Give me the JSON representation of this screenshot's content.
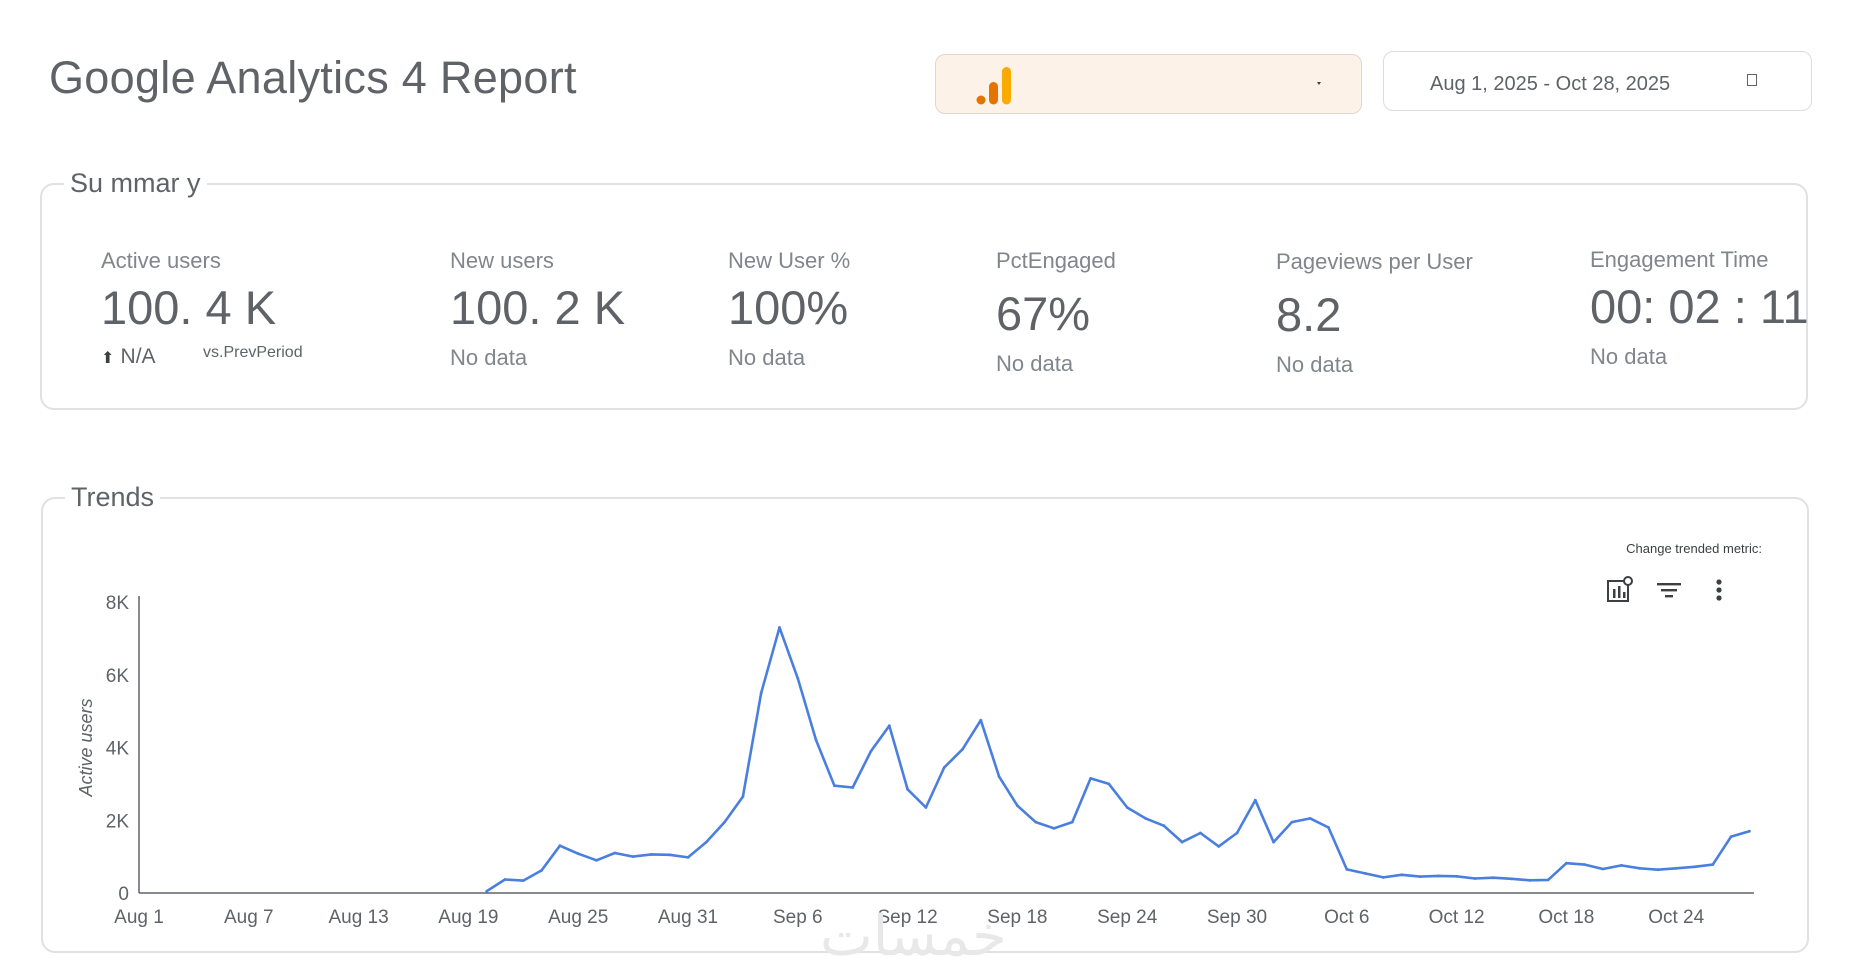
{
  "header": {
    "title": "Google Analytics 4 Report",
    "account_selector": {
      "logo_icon": "ga-bars-logo-icon",
      "value": ""
    },
    "date_range": {
      "text": "Aug 1, 2025 - Oct 28, 2025",
      "icon": "calendar-icon"
    }
  },
  "summary": {
    "legend": "Su mmar y",
    "metrics": [
      {
        "label": "Active users",
        "value": "100. 4 K",
        "change": "N/A",
        "change_icon": "arrow-up-icon",
        "vs": "vs.PrevPeriod"
      },
      {
        "label": "New users",
        "value": "100. 2 K",
        "sub": "No data"
      },
      {
        "label": "New User %",
        "value": "100%",
        "sub": "No data"
      },
      {
        "label": "PctEngaged",
        "value": "67%",
        "sub": "No data"
      },
      {
        "label": "Pageviews per User",
        "value": "8.2",
        "sub": "No data"
      },
      {
        "label": "Engagement Time",
        "value": "00: 02 : 11",
        "sub": "No data"
      }
    ]
  },
  "trends": {
    "legend": "Trends",
    "change_metric_label": "Change trended metric:",
    "icons": [
      "chart-settings-icon",
      "filter-icon",
      "more-vert-icon"
    ]
  },
  "colors": {
    "line": "#4a7fe0",
    "accent": "#f9ab00",
    "accent_dark": "#e37400"
  },
  "watermark": "خمسات",
  "chart_data": {
    "type": "line",
    "title": "",
    "xlabel": "",
    "ylabel": "Active users",
    "ylim": [
      0,
      8000
    ],
    "yticks": [
      "0",
      "2K",
      "4K",
      "6K",
      "8K"
    ],
    "xticks": [
      "Aug 1",
      "Aug 7",
      "Aug 13",
      "Aug 19",
      "Aug 25",
      "Aug 31",
      "Sep 6",
      "Sep 12",
      "Sep 18",
      "Sep 24",
      "Sep 30",
      "Oct 6",
      "Oct 12",
      "Oct 18",
      "Oct 24"
    ],
    "x_start": "2025-08-01",
    "series": [
      {
        "points": [
          [
            "2025-08-20",
            50
          ],
          [
            "2025-08-21",
            370
          ],
          [
            "2025-08-22",
            340
          ],
          [
            "2025-08-23",
            620
          ],
          [
            "2025-08-24",
            1300
          ],
          [
            "2025-08-25",
            1080
          ],
          [
            "2025-08-26",
            900
          ],
          [
            "2025-08-27",
            1100
          ],
          [
            "2025-08-28",
            1000
          ],
          [
            "2025-08-29",
            1060
          ],
          [
            "2025-08-30",
            1050
          ],
          [
            "2025-08-31",
            980
          ],
          [
            "2025-09-01",
            1400
          ],
          [
            "2025-09-02",
            1950
          ],
          [
            "2025-09-03",
            2650
          ],
          [
            "2025-09-04",
            5500
          ],
          [
            "2025-09-05",
            7300
          ],
          [
            "2025-09-06",
            5900
          ],
          [
            "2025-09-07",
            4200
          ],
          [
            "2025-09-08",
            2950
          ],
          [
            "2025-09-09",
            2900
          ],
          [
            "2025-09-10",
            3900
          ],
          [
            "2025-09-11",
            4600
          ],
          [
            "2025-09-12",
            2850
          ],
          [
            "2025-09-13",
            2350
          ],
          [
            "2025-09-14",
            3450
          ],
          [
            "2025-09-15",
            3950
          ],
          [
            "2025-09-16",
            4750
          ],
          [
            "2025-09-17",
            3200
          ],
          [
            "2025-09-18",
            2400
          ],
          [
            "2025-09-19",
            1950
          ],
          [
            "2025-09-20",
            1780
          ],
          [
            "2025-09-21",
            1950
          ],
          [
            "2025-09-22",
            3150
          ],
          [
            "2025-09-23",
            3000
          ],
          [
            "2025-09-24",
            2350
          ],
          [
            "2025-09-25",
            2050
          ],
          [
            "2025-09-26",
            1850
          ],
          [
            "2025-09-27",
            1400
          ],
          [
            "2025-09-28",
            1650
          ],
          [
            "2025-09-29",
            1280
          ],
          [
            "2025-09-30",
            1650
          ],
          [
            "2025-10-01",
            2550
          ],
          [
            "2025-10-02",
            1400
          ],
          [
            "2025-10-03",
            1950
          ],
          [
            "2025-10-04",
            2050
          ],
          [
            "2025-10-05",
            1800
          ],
          [
            "2025-10-06",
            650
          ],
          [
            "2025-10-07",
            540
          ],
          [
            "2025-10-08",
            430
          ],
          [
            "2025-10-09",
            500
          ],
          [
            "2025-10-10",
            450
          ],
          [
            "2025-10-11",
            470
          ],
          [
            "2025-10-12",
            460
          ],
          [
            "2025-10-13",
            400
          ],
          [
            "2025-10-14",
            420
          ],
          [
            "2025-10-15",
            390
          ],
          [
            "2025-10-16",
            350
          ],
          [
            "2025-10-17",
            360
          ],
          [
            "2025-10-18",
            820
          ],
          [
            "2025-10-19",
            780
          ],
          [
            "2025-10-20",
            660
          ],
          [
            "2025-10-21",
            760
          ],
          [
            "2025-10-22",
            680
          ],
          [
            "2025-10-23",
            640
          ],
          [
            "2025-10-24",
            680
          ],
          [
            "2025-10-25",
            720
          ],
          [
            "2025-10-26",
            780
          ],
          [
            "2025-10-27",
            1550
          ],
          [
            "2025-10-28",
            1700
          ]
        ]
      }
    ],
    "grid": false,
    "legend": "none"
  }
}
